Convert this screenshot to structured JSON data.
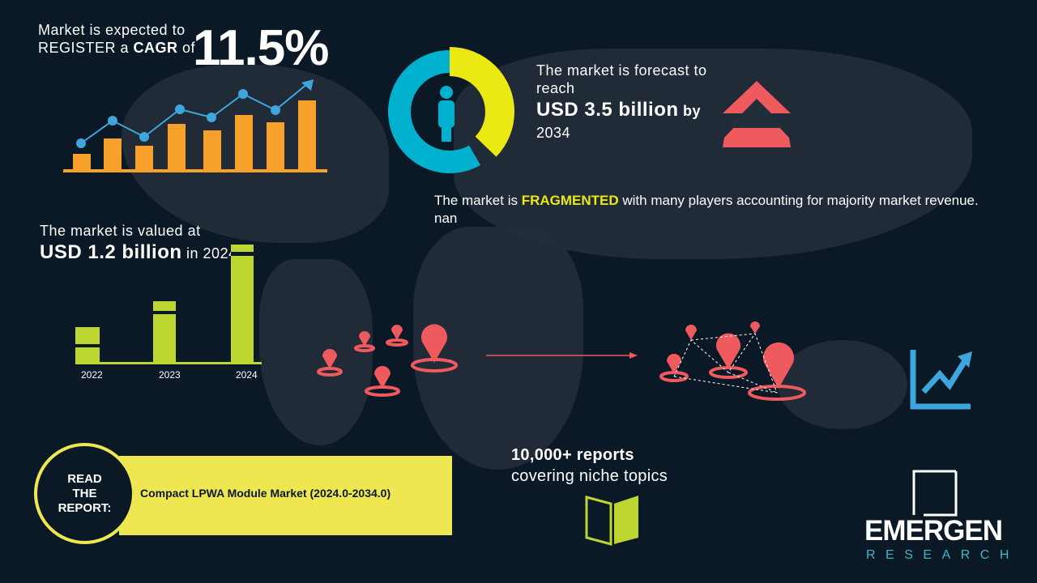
{
  "cagr": {
    "line1": "Market is expected to",
    "line2a": "REGISTER a ",
    "line2b": "CAGR",
    "line2c": " of",
    "value": "11.5%"
  },
  "forecast": {
    "line1": "The market is forecast to",
    "line2": "reach",
    "value": "USD 3.5 billion",
    "by": " by",
    "year": "2034"
  },
  "fragmented": {
    "pre": "The market is ",
    "word": "FRAGMENTED",
    "post": " with many players accounting for majority market revenue. nan"
  },
  "valued": {
    "line1": "The market is valued at",
    "value": "USD 1.2 billion",
    "suffix": " in 2024"
  },
  "value_bars": {
    "categories": [
      "2022",
      "2023",
      "2024"
    ]
  },
  "reports": {
    "line1": "10,000+ reports",
    "line2": "covering niche topics"
  },
  "read": {
    "l1": "READ",
    "l2": "THE",
    "l3": "REPORT:",
    "title": "Compact LPWA Module Market (2024.0-2034.0)"
  },
  "logo": {
    "name": "EMERGEN",
    "sub": "RESEARCH"
  },
  "colors": {
    "bg": "#0b1825",
    "orange": "#f7a02a",
    "blue": "#3ea6dc",
    "yellow": "#ece814",
    "green": "#bed631",
    "red": "#ee5a5e"
  }
}
